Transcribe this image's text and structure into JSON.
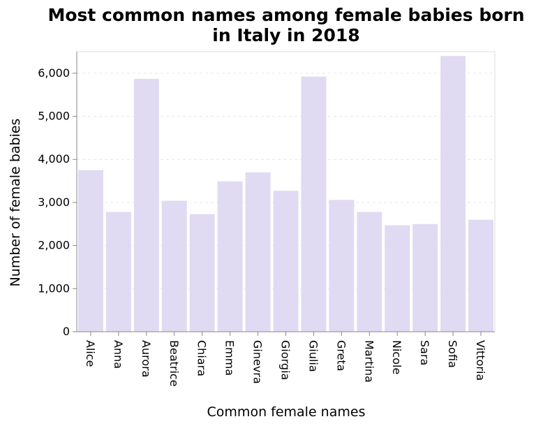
{
  "chart_data": {
    "type": "bar",
    "title": [
      "Most common names among female babies born",
      "in Italy in 2018"
    ],
    "xlabel": "Common female names",
    "ylabel": "Number of female babies",
    "categories": [
      "Alice",
      "Anna",
      "Aurora",
      "Beatrice",
      "Chiara",
      "Emma",
      "Ginevra",
      "Giorgia",
      "Giulia",
      "Greta",
      "Martina",
      "Nicole",
      "Sara",
      "Sofia",
      "Vittoria"
    ],
    "values": [
      3750,
      2780,
      5870,
      3040,
      2730,
      3490,
      3700,
      3270,
      5920,
      3060,
      2780,
      2470,
      2500,
      6400,
      2600
    ],
    "ylim": [
      0,
      6500
    ],
    "yticks": [
      0,
      1000,
      2000,
      3000,
      4000,
      5000,
      6000
    ],
    "ytick_labels": [
      "0",
      "1,000",
      "2,000",
      "3,000",
      "4,000",
      "5,000",
      "6,000"
    ],
    "grid": true,
    "bar_color": "#e0dbf3"
  }
}
